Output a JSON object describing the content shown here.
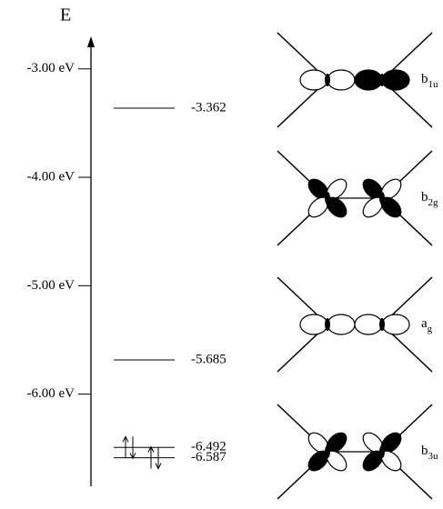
{
  "axis": {
    "label": "E",
    "lim": [
      -2.7,
      -6.85
    ],
    "ticks": [
      {
        "value": -3,
        "label": "-3.00 eV"
      },
      {
        "value": -4,
        "label": "-4.00 eV"
      },
      {
        "value": -5,
        "label": "-5.00 eV"
      },
      {
        "value": -6,
        "label": "-6.00 eV"
      }
    ]
  },
  "levels": [
    -3.362,
    -5.685,
    -6.492,
    -6.587
  ],
  "orbitals": [
    {
      "letter": "b",
      "sub": "1u"
    },
    {
      "letter": "b",
      "sub": "2g"
    },
    {
      "letter": "a",
      "sub": "g"
    },
    {
      "letter": "b",
      "sub": "3u"
    }
  ]
}
